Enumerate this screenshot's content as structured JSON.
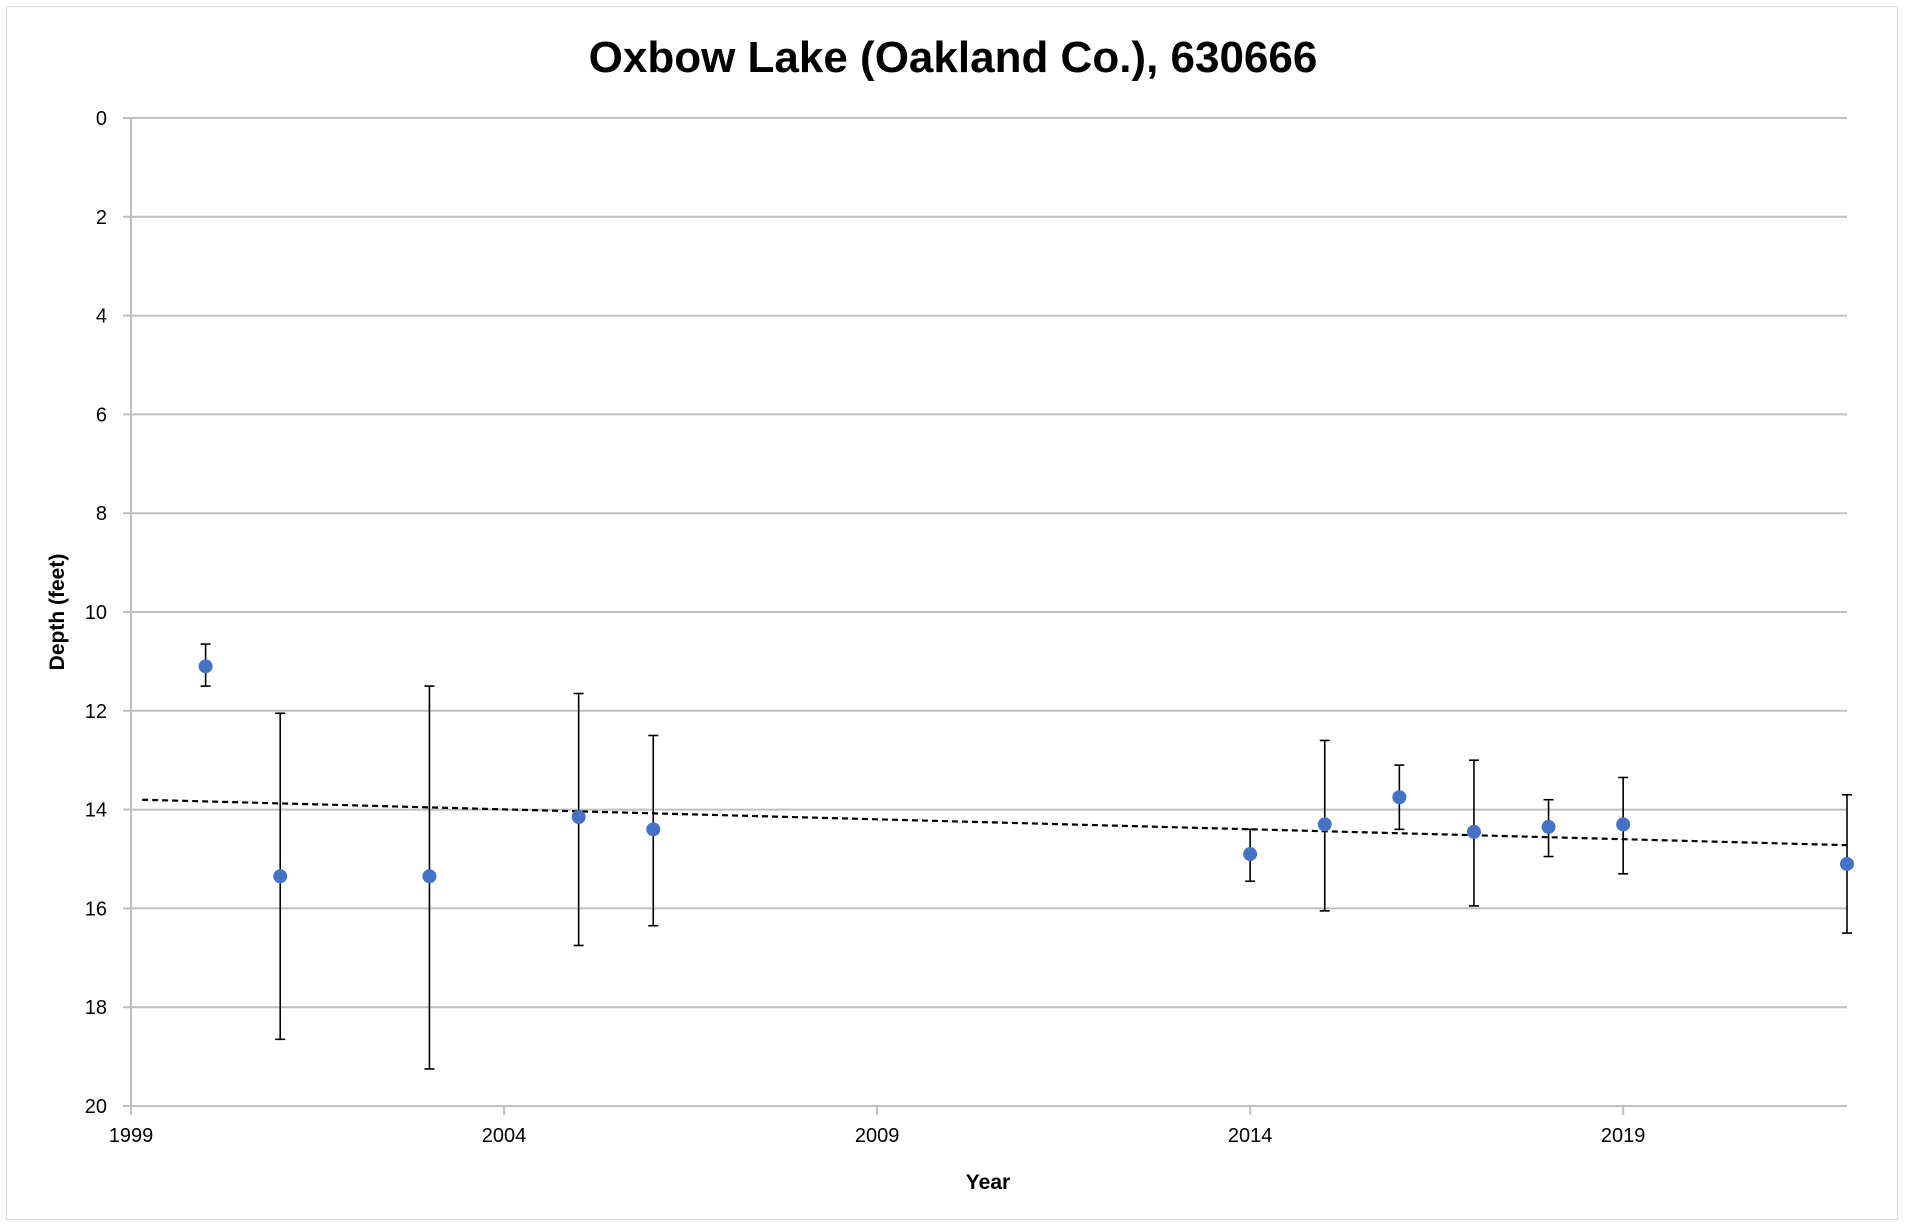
{
  "chart_data": {
    "type": "scatter",
    "title": "Oxbow Lake (Oakland Co.), 630666",
    "xlabel": "Year",
    "ylabel": "Depth (feet)",
    "xlim": [
      1999,
      2022
    ],
    "ylim": [
      0,
      20
    ],
    "y_inverted": true,
    "grid": "horizontal",
    "legend": "none",
    "x_ticks": [
      "1999",
      "2004",
      "2009",
      "2014",
      "2019"
    ],
    "x_tick_values": [
      1999,
      2004,
      2009,
      2014,
      2019
    ],
    "y_ticks": [
      "0",
      "2",
      "4",
      "6",
      "8",
      "10",
      "12",
      "14",
      "16",
      "18",
      "20"
    ],
    "y_tick_values": [
      0,
      2,
      4,
      6,
      8,
      10,
      12,
      14,
      16,
      18,
      20
    ],
    "series": [
      {
        "marker_color": "#4472c4",
        "x": [
          2000,
          2001,
          2003,
          2005,
          2006,
          2014,
          2015,
          2016,
          2017,
          2018,
          2019,
          2022
        ],
        "y": [
          11.1,
          15.35,
          15.35,
          14.15,
          14.4,
          14.9,
          14.3,
          13.75,
          14.45,
          14.35,
          14.3,
          15.1
        ],
        "err_low": [
          10.65,
          12.05,
          11.5,
          11.65,
          12.5,
          14.4,
          12.6,
          13.1,
          13.0,
          13.8,
          13.35,
          13.7
        ],
        "err_high": [
          11.5,
          18.65,
          19.25,
          16.75,
          16.35,
          15.45,
          16.05,
          14.4,
          15.95,
          14.95,
          15.3,
          16.5
        ]
      }
    ],
    "trendline": {
      "style": "dashed",
      "color": "#000000",
      "x": [
        1999.15,
        2022
      ],
      "y": [
        13.8,
        14.72
      ]
    }
  }
}
